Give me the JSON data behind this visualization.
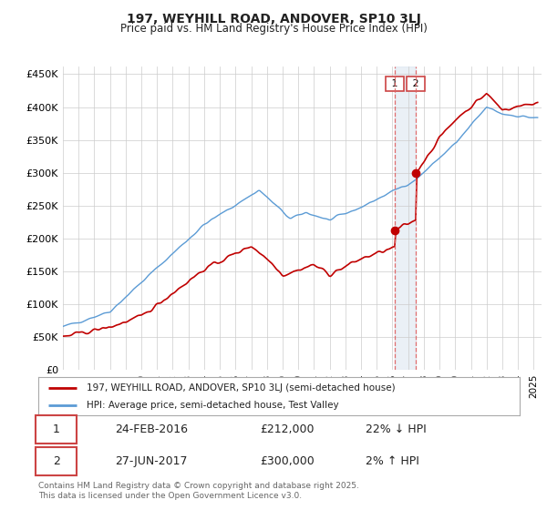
{
  "title_line1": "197, WEYHILL ROAD, ANDOVER, SP10 3LJ",
  "title_line2": "Price paid vs. HM Land Registry's House Price Index (HPI)",
  "yticks": [
    0,
    50000,
    100000,
    150000,
    200000,
    250000,
    300000,
    350000,
    400000,
    450000
  ],
  "ytick_labels": [
    "£0",
    "£50K",
    "£100K",
    "£150K",
    "£200K",
    "£250K",
    "£300K",
    "£350K",
    "£400K",
    "£450K"
  ],
  "hpi_color": "#5b9bd5",
  "price_color": "#c00000",
  "transaction1_date": "24-FEB-2016",
  "transaction1_price": "£212,000",
  "transaction1_hpi": "22% ↓ HPI",
  "transaction2_date": "27-JUN-2017",
  "transaction2_price": "£300,000",
  "transaction2_hpi": "2% ↑ HPI",
  "legend_label1": "197, WEYHILL ROAD, ANDOVER, SP10 3LJ (semi-detached house)",
  "legend_label2": "HPI: Average price, semi-detached house, Test Valley",
  "footer": "Contains HM Land Registry data © Crown copyright and database right 2025.\nThis data is licensed under the Open Government Licence v3.0.",
  "vline1_year": 2016.15,
  "vline2_year": 2017.49,
  "background_color": "#ffffff",
  "grid_color": "#cccccc",
  "shade_color": "#dce6f1"
}
